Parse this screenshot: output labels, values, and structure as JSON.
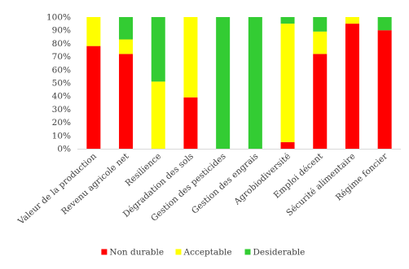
{
  "chart_data": {
    "type": "bar",
    "stacked": true,
    "categories": [
      "Valeur de la production",
      "Revenu agricole net",
      "Resilience",
      "Dégradation des sols",
      "Gestion des pesticides",
      "Gestion des engrais",
      "Agrobiodiversité",
      "Emploi décent",
      "Sécurité alimentaire",
      "Régime foncier"
    ],
    "series": [
      {
        "name": "Non durable",
        "color": "#ff0000",
        "values": [
          78,
          72,
          0,
          39,
          0,
          0,
          5,
          72,
          95,
          90
        ]
      },
      {
        "name": "Acceptable",
        "color": "#ffff00",
        "values": [
          22,
          11,
          51,
          61,
          0,
          0,
          90,
          17,
          5,
          0
        ]
      },
      {
        "name": "Desiderable",
        "color": "#33cc33",
        "values": [
          0,
          17,
          49,
          0,
          100,
          100,
          5,
          11,
          0,
          10
        ]
      }
    ],
    "yticks": [
      "0%",
      "10%",
      "20%",
      "30%",
      "40%",
      "50%",
      "60%",
      "70%",
      "80%",
      "90%",
      "100%"
    ],
    "ylim": [
      0,
      100
    ],
    "grid": false,
    "legend_position": "bottom"
  }
}
